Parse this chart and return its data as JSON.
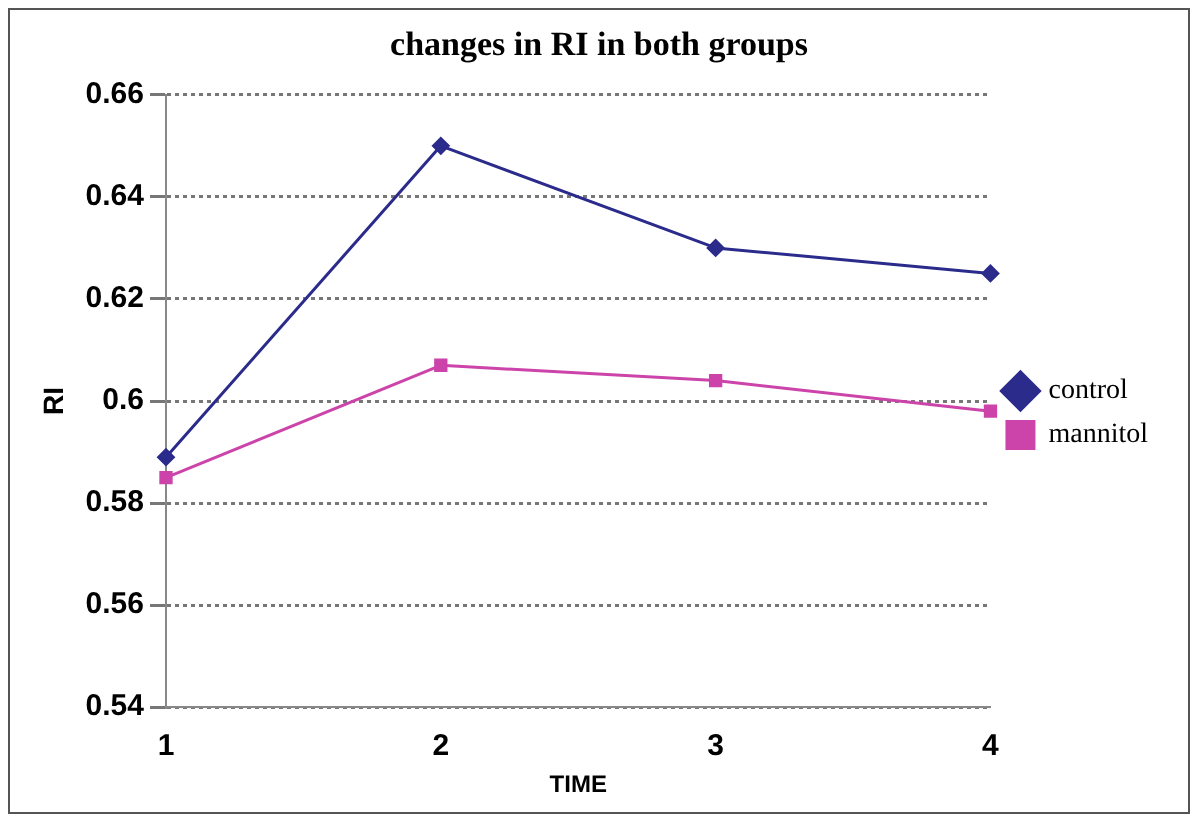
{
  "chart_data": {
    "type": "line",
    "title": "changes in RI in both groups",
    "xlabel": "TIME",
    "ylabel": "RI",
    "categories": [
      "1",
      "2",
      "3",
      "4"
    ],
    "series": [
      {
        "name": "control",
        "color": "#2b2b8c",
        "values": [
          0.589,
          0.65,
          0.63,
          0.625
        ],
        "marker": "diamond"
      },
      {
        "name": "mannitol",
        "color": "#cc44aa",
        "values": [
          0.585,
          0.607,
          0.604,
          0.598
        ],
        "marker": "square"
      }
    ],
    "ylim": [
      0.54,
      0.66
    ],
    "yticks": [
      0.54,
      0.56,
      0.58,
      0.6,
      0.62,
      0.64,
      0.66
    ],
    "grid": "y",
    "legend": "right"
  }
}
